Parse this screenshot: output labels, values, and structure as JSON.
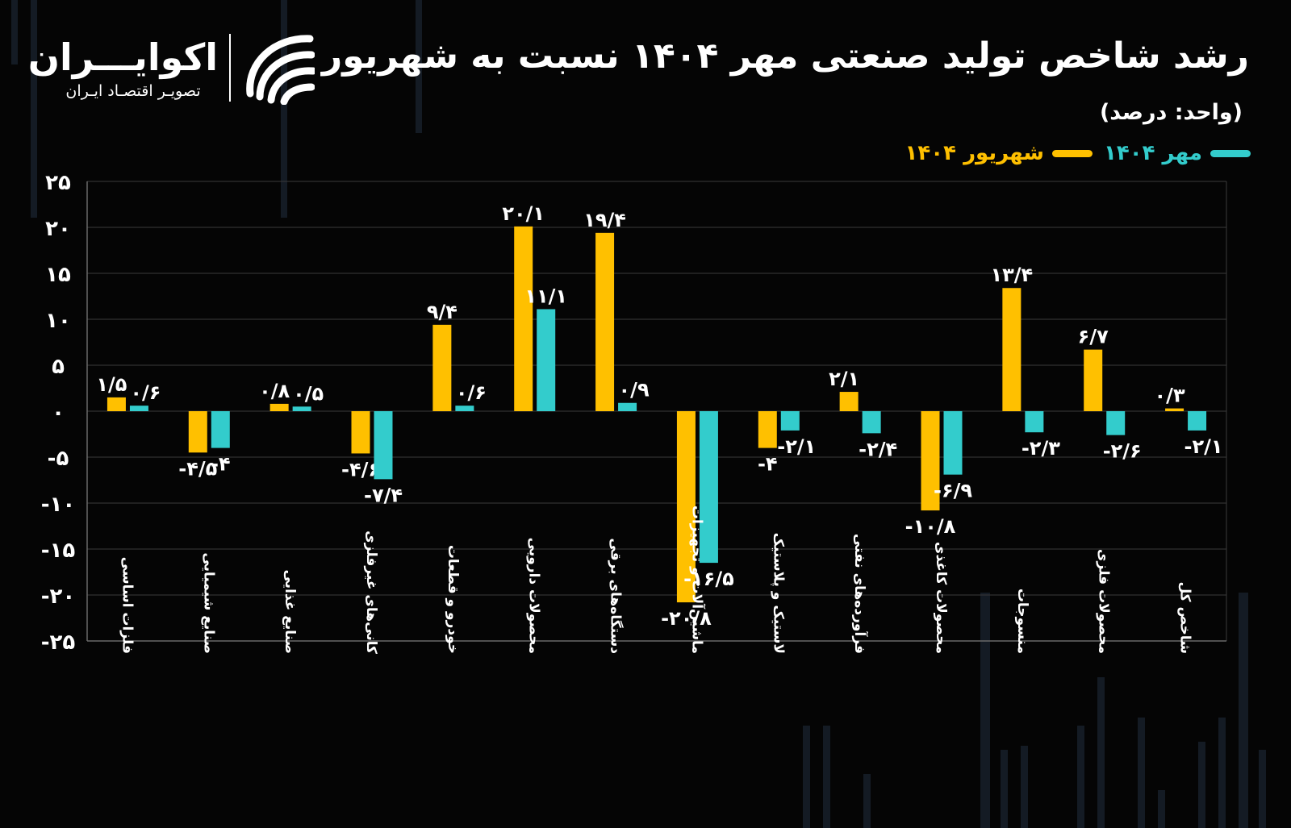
{
  "header": {
    "title": "رشد شاخص تولید صنعتی مهر ۱۴۰۴ نسبت به شهریور",
    "unit": "(واحد: درصد)"
  },
  "logo": {
    "name": "اکوایـــران",
    "tagline": "تصویـر اقتصـاد ایـران"
  },
  "colors": {
    "background": "#050505",
    "shahrivar": "#FFC000",
    "mehr": "#33CCCC",
    "grid": "#3a3a3a",
    "text": "#FFFFFF"
  },
  "chart_data": {
    "type": "bar",
    "categories": [
      "فلزات اساسی",
      "صنایع شیمیایی",
      "صنایع غذایی",
      "کانی‌های غیرفلزی",
      "خودرو و قطعات",
      "محصولات دارویی",
      "دستگاه‌های برقی",
      "ماشین‌آلات و تجهیزات",
      "لاستیک و پلاستیک",
      "فرآورده‌های نفتی",
      "محصولات کاغذی",
      "منسوجات",
      "محصولات فلزی",
      "شاخص کل"
    ],
    "series": [
      {
        "name": "شهریور ۱۴۰۴",
        "color": "#FFC000",
        "values": [
          1.5,
          -4.5,
          0.8,
          -4.6,
          9.4,
          20.1,
          19.4,
          -20.8,
          -4,
          2.1,
          -10.8,
          13.4,
          6.7,
          0.3
        ],
        "labels": [
          "۱/۵",
          "-۴/۵",
          "۰/۸",
          "-۴/۶",
          "۹/۴",
          "۲۰/۱",
          "۱۹/۴",
          "-۲۰/۸",
          "-۴",
          "۲/۱",
          "-۱۰/۸",
          "۱۳/۴",
          "۶/۷",
          "۰/۳"
        ]
      },
      {
        "name": "مهر ۱۴۰۴",
        "color": "#33CCCC",
        "values": [
          0.6,
          -4,
          0.5,
          -7.4,
          0.6,
          11.1,
          0.9,
          -16.5,
          -2.1,
          -2.4,
          -6.9,
          -2.3,
          -2.6,
          -2.1
        ],
        "labels": [
          "۰/۶",
          "-۴",
          "۰/۵",
          "-۷/۴",
          "۰/۶",
          "۱۱/۱",
          "۰/۹",
          "-۱۶/۵",
          "-۲/۱",
          "-۲/۴",
          "-۶/۹",
          "-۲/۳",
          "-۲/۶",
          "-۲/۱"
        ]
      }
    ],
    "ylim": [
      -25,
      25
    ],
    "yticks": [
      25,
      20,
      15,
      10,
      5,
      0,
      -5,
      -10,
      -15,
      -20,
      -25
    ],
    "ytick_labels": [
      "۲۵",
      "۲۰",
      "۱۵",
      "۱۰",
      "۵",
      "۰",
      "-۵",
      "-۱۰",
      "-۱۵",
      "-۲۰",
      "-۲۵"
    ],
    "xlabel": "",
    "ylabel": "",
    "grid": true,
    "legend_position": "top-right"
  }
}
